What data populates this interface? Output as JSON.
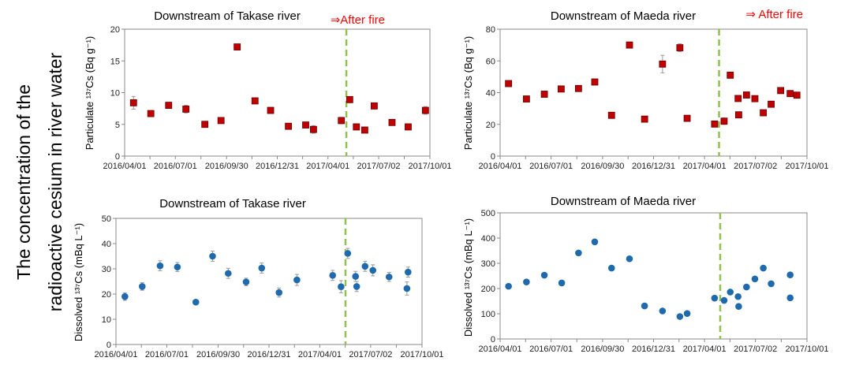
{
  "side_title": {
    "line1": "The concentration of the",
    "line2": "radioactive cesium in river water"
  },
  "colors": {
    "particulate": "#c00000",
    "dissolved": "#1f6aad",
    "fire_line": "#92c050",
    "after_fire": "#ff0000"
  },
  "chart_data": [
    {
      "type": "scatter",
      "title": "Downstream of Takase river",
      "annotation": "⇒After fire",
      "ylabel": "Particulate ¹³⁷Cs (Bq g⁻¹)",
      "xlabel": "",
      "x_unit": "days since 2016/04/01",
      "xlim": [
        0,
        548
      ],
      "ylim": [
        0,
        20
      ],
      "yticks": [
        "0",
        "5",
        "10",
        "15",
        "20"
      ],
      "xticks": [
        "2016/04/01",
        "2016/07/01",
        "2016/09/30",
        "2016/12/31",
        "2017/04/01",
        "2017/07/02",
        "2017/10/01"
      ],
      "xtick_days": [
        0,
        91,
        183,
        274,
        365,
        456,
        548
      ],
      "fire_day": 398,
      "marker": "square",
      "x": [
        16,
        47,
        79,
        110,
        144,
        173,
        202,
        234,
        262,
        294,
        325,
        339,
        389,
        404,
        416,
        431,
        448,
        480,
        509,
        540
      ],
      "y": [
        8.4,
        6.7,
        8.0,
        7.4,
        5.0,
        5.6,
        17.2,
        8.7,
        7.2,
        4.7,
        4.9,
        4.2,
        5.6,
        8.9,
        4.6,
        4.1,
        7.9,
        5.3,
        4.6,
        7.2
      ],
      "err": [
        1.0,
        0.3,
        0.3,
        0.6,
        0.2,
        0.2,
        0.2,
        0.4,
        0.3,
        0.2,
        0.2,
        0.6,
        0.5,
        0.4,
        0.2,
        0.2,
        0.2,
        0.2,
        0.2,
        0.6
      ]
    },
    {
      "type": "scatter",
      "title": "Downstream of Maeda river",
      "annotation": "⇒ After fire",
      "ylabel": "Particulate ¹³⁷Cs (Bq g⁻¹)",
      "xlabel": "",
      "x_unit": "days since 2016/04/01",
      "xlim": [
        0,
        548
      ],
      "ylim": [
        0,
        80
      ],
      "yticks": [
        "0",
        "20",
        "40",
        "60",
        "80"
      ],
      "xticks": [
        "2016/04/01",
        "2016/07/01",
        "2016/09/30",
        "2016/12/31",
        "2017/04/01",
        "2017/07/02",
        "2017/10/01"
      ],
      "xtick_days": [
        0,
        91,
        183,
        274,
        365,
        456,
        548
      ],
      "fire_day": 391,
      "marker": "square",
      "x": [
        15,
        47,
        79,
        109,
        140,
        169,
        199,
        231,
        258,
        290,
        321,
        334,
        383,
        400,
        411,
        425,
        426,
        440,
        455,
        470,
        484,
        501,
        518,
        530
      ],
      "y": [
        45.7,
        36,
        39,
        42.3,
        42.6,
        46.7,
        25.7,
        70,
        23.3,
        58,
        68.3,
        23.8,
        20.2,
        22,
        51,
        36.3,
        26,
        38.5,
        36.2,
        27.3,
        32.7,
        41.3,
        39.4,
        38.4
      ],
      "err": [
        1,
        0.5,
        0.5,
        0.5,
        0.5,
        0.5,
        0.5,
        0.5,
        0.5,
        5.5,
        2.5,
        0.5,
        0.5,
        2,
        0.5,
        0.8,
        0.5,
        0.5,
        0.5,
        0.5,
        0.5,
        0.5,
        1,
        0.5
      ]
    },
    {
      "type": "scatter",
      "title": "Downstream of Takase river",
      "ylabel": "Dissolved ¹³⁷Cs (mBq L⁻¹)",
      "xlabel": "",
      "x_unit": "days since 2016/04/01",
      "xlim": [
        0,
        548
      ],
      "ylim": [
        0,
        50
      ],
      "yticks": [
        "0",
        "10",
        "20",
        "30",
        "40",
        "50"
      ],
      "xticks": [
        "2016/04/01",
        "2016/07/01",
        "2016/09/30",
        "2016/12/31",
        "2017/04/01",
        "2017/07/02",
        "2017/10/01"
      ],
      "xtick_days": [
        0,
        91,
        183,
        274,
        365,
        456,
        548
      ],
      "fire_day": 411,
      "marker": "circle",
      "x": [
        16,
        47,
        79,
        110,
        143,
        173,
        201,
        233,
        261,
        292,
        324,
        388,
        403,
        415,
        429,
        431,
        446,
        460,
        489,
        521,
        523
      ],
      "y": [
        19,
        23,
        31.2,
        30.7,
        16.8,
        35,
        28.2,
        24.8,
        30.3,
        20.6,
        25.6,
        27.4,
        22.9,
        36.1,
        27,
        23,
        31,
        29.4,
        26.8,
        22.2,
        28.7
      ],
      "err": [
        1.5,
        1.5,
        2,
        1.8,
        0.5,
        2,
        2,
        1.5,
        2,
        1.8,
        2.2,
        2,
        2.4,
        2,
        2,
        2,
        2,
        2.2,
        1.8,
        2.6,
        2
      ]
    },
    {
      "type": "scatter",
      "title": "Downstream of Maeda river",
      "ylabel": "Dissolved ¹³⁷Cs (mBq L⁻¹)",
      "xlabel": "",
      "x_unit": "days since 2016/04/01",
      "xlim": [
        0,
        548
      ],
      "ylim": [
        0,
        500
      ],
      "yticks": [
        "0",
        "100",
        "200",
        "300",
        "400",
        "500"
      ],
      "xticks": [
        "2016/04/01",
        "2016/07/01",
        "2016/09/30",
        "2016/12/31",
        "2017/04/01",
        "2017/07/02",
        "2017/10/01"
      ],
      "xtick_days": [
        0,
        91,
        183,
        274,
        365,
        456,
        548
      ],
      "fire_day": 393,
      "marker": "circle",
      "x": [
        15,
        47,
        79,
        110,
        140,
        169,
        199,
        231,
        258,
        290,
        321,
        334,
        383,
        400,
        411,
        425,
        426,
        440,
        455,
        470,
        484,
        518,
        518
      ],
      "y": [
        209,
        226,
        253,
        222,
        341,
        385,
        281,
        318,
        131,
        111,
        89,
        101,
        162,
        153,
        186,
        168,
        129,
        206,
        238,
        281,
        219,
        163,
        254
      ],
      "err": [
        0,
        0,
        0,
        0,
        0,
        0,
        0,
        0,
        0,
        0,
        0,
        0,
        0,
        0,
        0,
        0,
        0,
        0,
        0,
        0,
        0,
        0,
        0
      ]
    }
  ]
}
